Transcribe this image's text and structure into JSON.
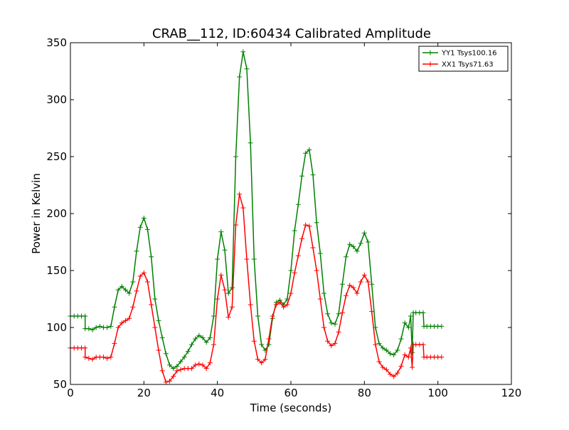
{
  "chart_data": {
    "type": "line",
    "title": "CRAB__112, ID:60434 Calibrated Amplitude",
    "xlabel": "Time (seconds)",
    "ylabel": "Power in Kelvin",
    "xlim": [
      0,
      120
    ],
    "ylim": [
      50,
      350
    ],
    "xticks": [
      0,
      20,
      40,
      60,
      80,
      100,
      120
    ],
    "yticks": [
      50,
      100,
      150,
      200,
      250,
      300,
      350
    ],
    "grid": false,
    "legend_position": "top-right",
    "marker": "plus",
    "series": [
      {
        "name": "YY1 Tsys100.16",
        "color": "#008000",
        "points": [
          [
            0,
            110
          ],
          [
            1,
            110
          ],
          [
            2,
            110
          ],
          [
            3,
            110
          ],
          [
            4,
            110
          ],
          [
            4.01,
            99
          ],
          [
            5,
            99
          ],
          [
            6,
            98
          ],
          [
            7,
            100
          ],
          [
            8,
            101
          ],
          [
            9,
            100
          ],
          [
            10,
            100
          ],
          [
            11,
            101
          ],
          [
            12,
            118
          ],
          [
            13,
            133
          ],
          [
            14,
            136
          ],
          [
            15,
            133
          ],
          [
            16,
            130
          ],
          [
            17,
            140
          ],
          [
            18,
            167
          ],
          [
            19,
            188
          ],
          [
            20,
            196
          ],
          [
            21,
            186
          ],
          [
            22,
            162
          ],
          [
            23,
            125
          ],
          [
            24,
            106
          ],
          [
            25,
            91
          ],
          [
            26,
            77
          ],
          [
            27,
            67
          ],
          [
            28,
            64
          ],
          [
            29,
            66
          ],
          [
            30,
            70
          ],
          [
            31,
            74
          ],
          [
            32,
            79
          ],
          [
            33,
            85
          ],
          [
            34,
            90
          ],
          [
            35,
            93
          ],
          [
            36,
            91
          ],
          [
            37,
            87
          ],
          [
            38,
            91
          ],
          [
            39,
            110
          ],
          [
            40,
            160
          ],
          [
            41,
            184
          ],
          [
            42,
            168
          ],
          [
            43,
            130
          ],
          [
            44,
            135
          ],
          [
            45,
            250
          ],
          [
            46,
            320
          ],
          [
            47,
            342
          ],
          [
            48,
            327
          ],
          [
            49,
            262
          ],
          [
            50,
            160
          ],
          [
            51,
            110
          ],
          [
            52,
            85
          ],
          [
            53,
            80
          ],
          [
            54,
            85
          ],
          [
            55,
            108
          ],
          [
            56,
            122
          ],
          [
            57,
            124
          ],
          [
            58,
            120
          ],
          [
            59,
            125
          ],
          [
            60,
            150
          ],
          [
            61,
            185
          ],
          [
            62,
            208
          ],
          [
            63,
            233
          ],
          [
            64,
            253
          ],
          [
            65,
            256
          ],
          [
            66,
            234
          ],
          [
            67,
            192
          ],
          [
            68,
            165
          ],
          [
            69,
            130
          ],
          [
            70,
            112
          ],
          [
            71,
            104
          ],
          [
            72,
            103
          ],
          [
            73,
            112
          ],
          [
            74,
            138
          ],
          [
            75,
            162
          ],
          [
            76,
            173
          ],
          [
            77,
            171
          ],
          [
            78,
            167
          ],
          [
            79,
            174
          ],
          [
            80,
            183
          ],
          [
            81,
            175
          ],
          [
            82,
            138
          ],
          [
            83,
            100
          ],
          [
            84,
            86
          ],
          [
            85,
            82
          ],
          [
            86,
            80
          ],
          [
            87,
            77
          ],
          [
            88,
            76
          ],
          [
            89,
            80
          ],
          [
            90,
            90
          ],
          [
            91,
            104
          ],
          [
            92,
            100
          ],
          [
            92.6,
            110
          ],
          [
            93,
            78
          ],
          [
            93.3,
            113
          ],
          [
            94,
            113
          ],
          [
            95,
            113
          ],
          [
            96,
            113
          ],
          [
            96.2,
            101
          ],
          [
            97,
            101
          ],
          [
            98,
            101
          ],
          [
            99,
            101
          ],
          [
            100,
            101
          ],
          [
            101,
            101
          ]
        ]
      },
      {
        "name": "XX1 Tsys71.63",
        "color": "#ff0000",
        "points": [
          [
            0,
            82
          ],
          [
            1,
            82
          ],
          [
            2,
            82
          ],
          [
            3,
            82
          ],
          [
            4,
            82
          ],
          [
            4.01,
            74
          ],
          [
            5,
            73
          ],
          [
            6,
            72
          ],
          [
            7,
            74
          ],
          [
            8,
            74
          ],
          [
            9,
            74
          ],
          [
            10,
            73
          ],
          [
            11,
            74
          ],
          [
            12,
            86
          ],
          [
            13,
            100
          ],
          [
            14,
            104
          ],
          [
            15,
            106
          ],
          [
            16,
            108
          ],
          [
            17,
            118
          ],
          [
            18,
            132
          ],
          [
            19,
            145
          ],
          [
            20,
            148
          ],
          [
            21,
            140
          ],
          [
            22,
            120
          ],
          [
            23,
            100
          ],
          [
            24,
            80
          ],
          [
            25,
            62
          ],
          [
            26,
            52
          ],
          [
            27,
            53
          ],
          [
            28,
            57
          ],
          [
            29,
            62
          ],
          [
            30,
            63
          ],
          [
            31,
            64
          ],
          [
            32,
            64
          ],
          [
            33,
            64
          ],
          [
            34,
            67
          ],
          [
            35,
            68
          ],
          [
            36,
            67
          ],
          [
            37,
            64
          ],
          [
            38,
            69
          ],
          [
            39,
            85
          ],
          [
            40,
            125
          ],
          [
            41,
            146
          ],
          [
            42,
            133
          ],
          [
            43,
            109
          ],
          [
            44,
            118
          ],
          [
            45,
            190
          ],
          [
            46,
            217
          ],
          [
            47,
            205
          ],
          [
            48,
            160
          ],
          [
            49,
            120
          ],
          [
            50,
            88
          ],
          [
            51,
            72
          ],
          [
            52,
            69
          ],
          [
            53,
            72
          ],
          [
            54,
            90
          ],
          [
            55,
            110
          ],
          [
            56,
            120
          ],
          [
            57,
            122
          ],
          [
            58,
            118
          ],
          [
            59,
            120
          ],
          [
            60,
            130
          ],
          [
            61,
            148
          ],
          [
            62,
            163
          ],
          [
            63,
            178
          ],
          [
            64,
            190
          ],
          [
            65,
            189
          ],
          [
            66,
            170
          ],
          [
            67,
            150
          ],
          [
            68,
            125
          ],
          [
            69,
            100
          ],
          [
            70,
            88
          ],
          [
            71,
            84
          ],
          [
            72,
            86
          ],
          [
            73,
            96
          ],
          [
            74,
            113
          ],
          [
            75,
            128
          ],
          [
            76,
            137
          ],
          [
            77,
            135
          ],
          [
            78,
            130
          ],
          [
            79,
            140
          ],
          [
            80,
            146
          ],
          [
            81,
            140
          ],
          [
            82,
            114
          ],
          [
            83,
            85
          ],
          [
            84,
            70
          ],
          [
            85,
            65
          ],
          [
            86,
            63
          ],
          [
            87,
            59
          ],
          [
            88,
            57
          ],
          [
            89,
            60
          ],
          [
            90,
            66
          ],
          [
            91,
            76
          ],
          [
            92,
            74
          ],
          [
            92.6,
            82
          ],
          [
            93,
            65
          ],
          [
            93.3,
            85
          ],
          [
            94,
            85
          ],
          [
            95,
            85
          ],
          [
            96,
            85
          ],
          [
            96.2,
            74
          ],
          [
            97,
            74
          ],
          [
            98,
            74
          ],
          [
            99,
            74
          ],
          [
            100,
            74
          ],
          [
            101,
            74
          ]
        ]
      }
    ]
  }
}
